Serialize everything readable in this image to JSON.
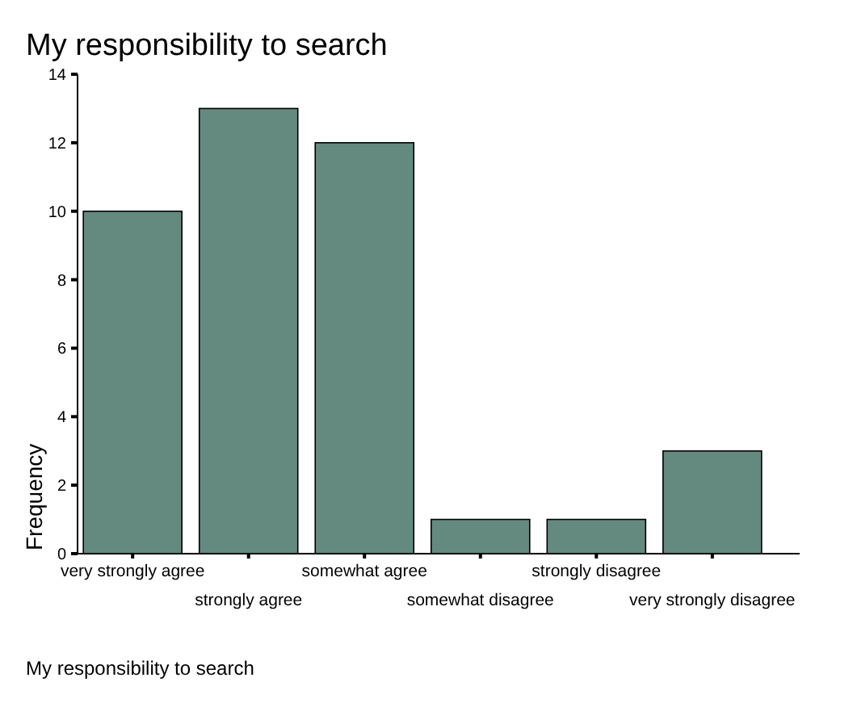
{
  "chart_data": {
    "type": "bar",
    "title": "My responsibility to search",
    "xlabel": "My responsibility to search",
    "ylabel": "Frequency",
    "categories": [
      "very strongly agree",
      "strongly agree",
      "somewhat agree",
      "somewhat disagree",
      "strongly disagree",
      "very strongly disagree"
    ],
    "values": [
      10,
      13,
      12,
      1,
      1,
      3
    ],
    "color": "#648a80",
    "ylim": [
      0,
      14
    ],
    "yticks": [
      0,
      2,
      4,
      6,
      8,
      10,
      12,
      14
    ],
    "grid": false
  }
}
